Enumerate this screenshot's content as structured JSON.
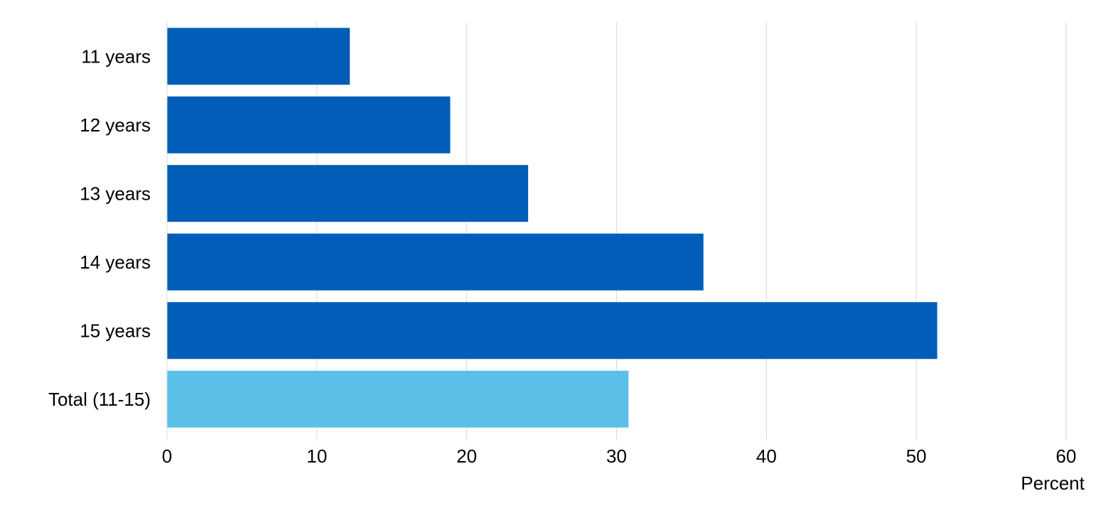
{
  "chart_data": {
    "type": "bar",
    "orientation": "horizontal",
    "categories": [
      "11 years",
      "12 years",
      "13 years",
      "14 years",
      "15 years",
      "Total (11-15)"
    ],
    "values": [
      12.2,
      18.9,
      24.1,
      35.8,
      51.4,
      30.8
    ],
    "bar_colors": [
      "#005EB8",
      "#005EB8",
      "#005EB8",
      "#005EB8",
      "#005EB8",
      "#5BC0E8"
    ],
    "xlabel": "Percent",
    "xlim": [
      0,
      60
    ],
    "xticks": [
      0,
      10,
      20,
      30,
      40,
      50,
      60
    ],
    "grid": "vertical",
    "grid_color": "#D9D9D9",
    "legend": "none"
  }
}
